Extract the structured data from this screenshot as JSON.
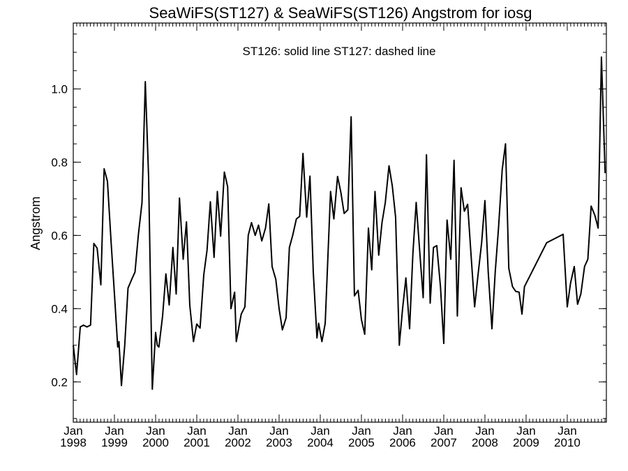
{
  "chart_data": {
    "type": "line",
    "title": "SeaWiFS(ST127) & SeaWiFS(ST126)  Angstrom for iosg",
    "annotation": "ST126: solid line   ST127: dashed line",
    "ylabel": "Angstrom",
    "xlabel": "",
    "xlim": [
      1998.0,
      2010.95
    ],
    "ylim": [
      0.09,
      1.18
    ],
    "yticks": [
      {
        "value": 0.2,
        "label": "0.2"
      },
      {
        "value": 0.4,
        "label": "0.4"
      },
      {
        "value": 0.6,
        "label": "0.6"
      },
      {
        "value": 0.8,
        "label": "0.8"
      },
      {
        "value": 1.0,
        "label": "1.0"
      }
    ],
    "xticks": [
      {
        "value": 1998,
        "month": "Jan",
        "year": "1998"
      },
      {
        "value": 1999,
        "month": "Jan",
        "year": "1999"
      },
      {
        "value": 2000,
        "month": "Jan",
        "year": "2000"
      },
      {
        "value": 2001,
        "month": "Jan",
        "year": "2001"
      },
      {
        "value": 2002,
        "month": "Jan",
        "year": "2002"
      },
      {
        "value": 2003,
        "month": "Jan",
        "year": "2003"
      },
      {
        "value": 2004,
        "month": "Jan",
        "year": "2004"
      },
      {
        "value": 2005,
        "month": "Jan",
        "year": "2005"
      },
      {
        "value": 2006,
        "month": "Jan",
        "year": "2006"
      },
      {
        "value": 2007,
        "month": "Jan",
        "year": "2007"
      },
      {
        "value": 2008,
        "month": "Jan",
        "year": "2008"
      },
      {
        "value": 2009,
        "month": "Jan",
        "year": "2009"
      },
      {
        "value": 2010,
        "month": "Jan",
        "year": "2010"
      }
    ],
    "x_minor_per_year": 12,
    "y_minor_step": 0.05,
    "grid": false,
    "legend": "none",
    "series": [
      {
        "style": "solid",
        "color": "#000000",
        "points": [
          [
            1998.0,
            0.3
          ],
          [
            1998.08,
            0.22
          ],
          [
            1998.17,
            0.35
          ],
          [
            1998.25,
            0.355
          ],
          [
            1998.33,
            0.35
          ],
          [
            1998.42,
            0.355
          ],
          [
            1998.5,
            0.578
          ],
          [
            1998.58,
            0.565
          ],
          [
            1998.67,
            0.465
          ],
          [
            1998.75,
            0.782
          ],
          [
            1998.83,
            0.748
          ],
          [
            1998.92,
            0.58
          ],
          [
            1999.0,
            0.44
          ],
          [
            1999.08,
            0.295
          ],
          [
            1999.11,
            0.31
          ],
          [
            1999.17,
            0.19
          ],
          [
            1999.25,
            0.3
          ],
          [
            1999.33,
            0.456
          ],
          [
            1999.42,
            0.48
          ],
          [
            1999.5,
            0.5
          ],
          [
            1999.58,
            0.6
          ],
          [
            1999.67,
            0.69
          ],
          [
            1999.75,
            1.02
          ],
          [
            1999.83,
            0.76
          ],
          [
            1999.92,
            0.18
          ],
          [
            2000.0,
            0.335
          ],
          [
            2000.04,
            0.3
          ],
          [
            2000.08,
            0.295
          ],
          [
            2000.17,
            0.38
          ],
          [
            2000.25,
            0.495
          ],
          [
            2000.33,
            0.41
          ],
          [
            2000.42,
            0.567
          ],
          [
            2000.5,
            0.44
          ],
          [
            2000.58,
            0.702
          ],
          [
            2000.67,
            0.535
          ],
          [
            2000.75,
            0.637
          ],
          [
            2000.83,
            0.41
          ],
          [
            2000.92,
            0.31
          ],
          [
            2001.0,
            0.358
          ],
          [
            2001.08,
            0.347
          ],
          [
            2001.17,
            0.492
          ],
          [
            2001.25,
            0.56
          ],
          [
            2001.33,
            0.692
          ],
          [
            2001.42,
            0.54
          ],
          [
            2001.5,
            0.72
          ],
          [
            2001.58,
            0.598
          ],
          [
            2001.67,
            0.773
          ],
          [
            2001.75,
            0.733
          ],
          [
            2001.83,
            0.4
          ],
          [
            2001.92,
            0.445
          ],
          [
            2001.96,
            0.31
          ],
          [
            2002.08,
            0.385
          ],
          [
            2002.17,
            0.405
          ],
          [
            2002.25,
            0.6
          ],
          [
            2002.33,
            0.635
          ],
          [
            2002.42,
            0.6
          ],
          [
            2002.5,
            0.628
          ],
          [
            2002.58,
            0.585
          ],
          [
            2002.67,
            0.62
          ],
          [
            2002.75,
            0.686
          ],
          [
            2002.83,
            0.515
          ],
          [
            2002.92,
            0.48
          ],
          [
            2003.0,
            0.4
          ],
          [
            2003.08,
            0.342
          ],
          [
            2003.17,
            0.375
          ],
          [
            2003.25,
            0.567
          ],
          [
            2003.33,
            0.6
          ],
          [
            2003.42,
            0.645
          ],
          [
            2003.5,
            0.652
          ],
          [
            2003.58,
            0.824
          ],
          [
            2003.67,
            0.65
          ],
          [
            2003.75,
            0.762
          ],
          [
            2003.83,
            0.5
          ],
          [
            2003.92,
            0.32
          ],
          [
            2003.96,
            0.36
          ],
          [
            2004.04,
            0.31
          ],
          [
            2004.12,
            0.36
          ],
          [
            2004.25,
            0.72
          ],
          [
            2004.33,
            0.645
          ],
          [
            2004.42,
            0.761
          ],
          [
            2004.5,
            0.718
          ],
          [
            2004.58,
            0.66
          ],
          [
            2004.67,
            0.67
          ],
          [
            2004.75,
            0.924
          ],
          [
            2004.83,
            0.435
          ],
          [
            2004.92,
            0.45
          ],
          [
            2005.0,
            0.37
          ],
          [
            2005.08,
            0.33
          ],
          [
            2005.17,
            0.62
          ],
          [
            2005.25,
            0.506
          ],
          [
            2005.33,
            0.72
          ],
          [
            2005.42,
            0.546
          ],
          [
            2005.5,
            0.635
          ],
          [
            2005.58,
            0.69
          ],
          [
            2005.67,
            0.79
          ],
          [
            2005.75,
            0.735
          ],
          [
            2005.83,
            0.65
          ],
          [
            2005.92,
            0.3
          ],
          [
            2006.0,
            0.4
          ],
          [
            2006.08,
            0.484
          ],
          [
            2006.17,
            0.345
          ],
          [
            2006.25,
            0.55
          ],
          [
            2006.33,
            0.69
          ],
          [
            2006.42,
            0.55
          ],
          [
            2006.5,
            0.43
          ],
          [
            2006.58,
            0.82
          ],
          [
            2006.67,
            0.415
          ],
          [
            2006.75,
            0.567
          ],
          [
            2006.83,
            0.572
          ],
          [
            2006.92,
            0.46
          ],
          [
            2007.0,
            0.305
          ],
          [
            2007.08,
            0.642
          ],
          [
            2007.17,
            0.535
          ],
          [
            2007.25,
            0.805
          ],
          [
            2007.33,
            0.38
          ],
          [
            2007.42,
            0.73
          ],
          [
            2007.5,
            0.666
          ],
          [
            2007.58,
            0.685
          ],
          [
            2007.67,
            0.535
          ],
          [
            2007.75,
            0.405
          ],
          [
            2007.83,
            0.49
          ],
          [
            2007.92,
            0.58
          ],
          [
            2008.0,
            0.695
          ],
          [
            2008.08,
            0.5
          ],
          [
            2008.17,
            0.345
          ],
          [
            2008.25,
            0.5
          ],
          [
            2008.33,
            0.62
          ],
          [
            2008.42,
            0.78
          ],
          [
            2008.5,
            0.85
          ],
          [
            2008.58,
            0.51
          ],
          [
            2008.67,
            0.46
          ],
          [
            2008.75,
            0.447
          ],
          [
            2008.83,
            0.445
          ],
          [
            2008.9,
            0.385
          ],
          [
            2008.96,
            0.46
          ],
          [
            2009.5,
            0.58
          ],
          [
            2009.9,
            0.603
          ],
          [
            2010.0,
            0.405
          ],
          [
            2010.08,
            0.47
          ],
          [
            2010.17,
            0.515
          ],
          [
            2010.25,
            0.412
          ],
          [
            2010.33,
            0.44
          ],
          [
            2010.42,
            0.515
          ],
          [
            2010.5,
            0.535
          ],
          [
            2010.58,
            0.68
          ],
          [
            2010.67,
            0.655
          ],
          [
            2010.75,
            0.62
          ],
          [
            2010.83,
            1.087
          ],
          [
            2010.92,
            0.77
          ]
        ]
      }
    ]
  }
}
